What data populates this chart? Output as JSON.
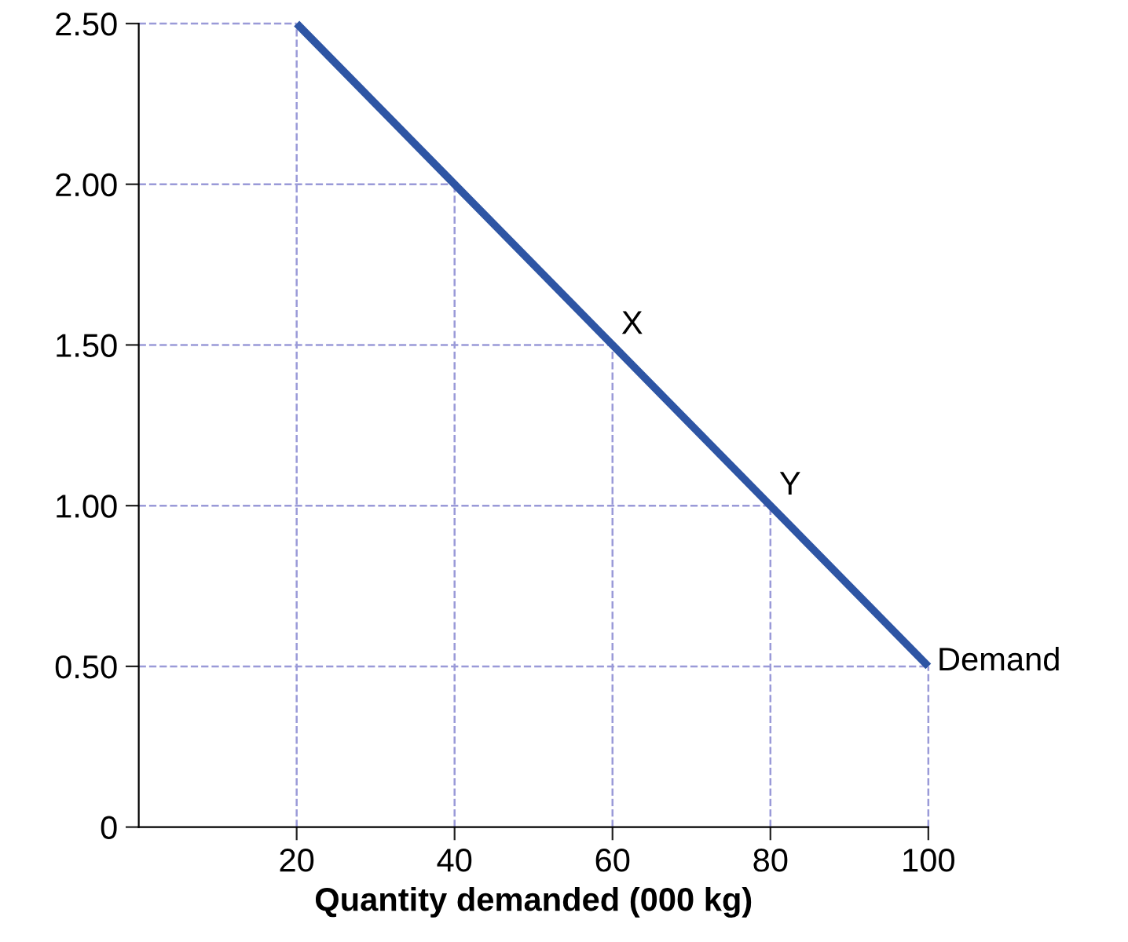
{
  "chart_data": {
    "type": "line",
    "xlabel": "Quantity demanded (000 kg)",
    "x": [
      20,
      40,
      60,
      80,
      100
    ],
    "series": [
      {
        "color": "#9a9ad8",
        "line_style": "dashed",
        "x": [
          0,
          20
        ],
        "values": [
          2.5,
          2.5
        ]
      },
      {
        "color": "#9a9ad8",
        "line_style": "dashed",
        "x": [
          0,
          40
        ],
        "values": [
          2.0,
          2.0
        ]
      },
      {
        "color": "#9a9ad8",
        "line_style": "dashed",
        "x": [
          0,
          60
        ],
        "values": [
          1.5,
          1.5
        ]
      },
      {
        "color": "#9a9ad8",
        "line_style": "dashed",
        "x": [
          0,
          80
        ],
        "values": [
          1.0,
          1.0
        ]
      },
      {
        "color": "#9a9ad8",
        "line_style": "dashed",
        "x": [
          0,
          100
        ],
        "values": [
          0.5,
          0.5
        ]
      },
      {
        "color": "#9a9ad8",
        "line_style": "dashed",
        "x": [
          20,
          20
        ],
        "values": [
          0,
          2.5
        ]
      },
      {
        "color": "#9a9ad8",
        "line_style": "dashed",
        "x": [
          40,
          40
        ],
        "values": [
          0,
          2.0
        ]
      },
      {
        "color": "#9a9ad8",
        "line_style": "dashed",
        "x": [
          60,
          60
        ],
        "values": [
          0,
          1.5
        ]
      },
      {
        "color": "#9a9ad8",
        "line_style": "dashed",
        "x": [
          80,
          80
        ],
        "values": [
          0,
          1.0
        ]
      },
      {
        "color": "#9a9ad8",
        "line_style": "dashed",
        "x": [
          100,
          100
        ],
        "values": [
          0,
          0.5
        ]
      },
      {
        "color": "#2e55a4",
        "values": [
          2.5,
          2.0,
          1.5,
          1.0,
          0.5
        ]
      }
    ],
    "xlim": [
      0,
      100
    ],
    "xticks": [
      20,
      40,
      60,
      80,
      100
    ],
    "ylim": [
      0,
      2.5
    ],
    "yticks": [
      {
        "value": 0,
        "label": "0"
      },
      {
        "value": 0.5,
        "label": "0.50"
      },
      {
        "value": 1.0,
        "label": "1.00"
      },
      {
        "value": 1.5,
        "label": "1.50"
      },
      {
        "value": 2.0,
        "label": "2.00"
      },
      {
        "value": 2.5,
        "label": "2.50"
      }
    ],
    "annotations": [
      {
        "text": "X",
        "x": 60,
        "y": 1.5
      },
      {
        "text": "Y",
        "x": 80,
        "y": 1.0
      },
      {
        "text": "Demand",
        "x": 100,
        "y": 0.5
      }
    ],
    "marker": "none",
    "line_style": "solid"
  }
}
